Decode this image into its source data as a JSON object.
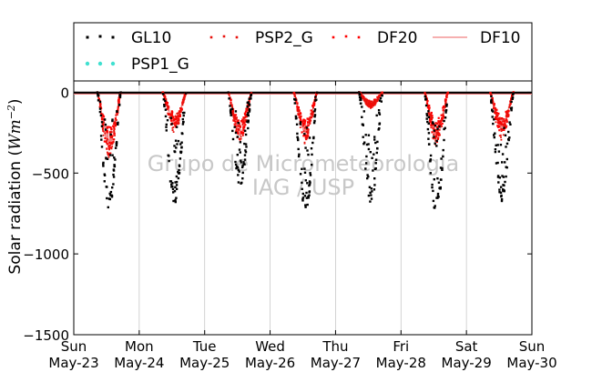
{
  "chart_data": {
    "type": "scatter",
    "title": "",
    "xlabel": "",
    "ylabel": "Solar radiation (Wm⁻²)",
    "ylabel_parts": {
      "main": "Solar radiation (",
      "unit": "Wm",
      "exp": "−2",
      "close": ")"
    },
    "xlim": [
      "2021-05-23",
      "2021-05-30"
    ],
    "ylim": [
      -1500,
      70
    ],
    "yticks": [
      0,
      -500,
      -1000,
      -1500
    ],
    "ytick_labels": [
      "0",
      "−500",
      "−1000",
      "−1500"
    ],
    "xtick_labels": [
      {
        "day": "Sun",
        "date": "May-23"
      },
      {
        "day": "Mon",
        "date": "May-24"
      },
      {
        "day": "Tue",
        "date": "May-25"
      },
      {
        "day": "Wed",
        "date": "May-26"
      },
      {
        "day": "Thu",
        "date": "May-27"
      },
      {
        "day": "Fri",
        "date": "May-28"
      },
      {
        "day": "Sat",
        "date": "May-29"
      },
      {
        "day": "Sun",
        "date": "May-30"
      }
    ],
    "grid": "vertical",
    "legend_placement": "top",
    "watermark": [
      "Grupo de Micrometeorologia",
      "IAG / USP"
    ],
    "day_peaks": [
      {
        "date": "2021-05-23",
        "GL10": -720,
        "PSP2_G": -410,
        "DF20": -390,
        "DF10": -330
      },
      {
        "date": "2021-05-24",
        "GL10": -690,
        "PSP2_G": -250,
        "DF20": -230,
        "DF10": -200
      },
      {
        "date": "2021-05-25",
        "GL10": -580,
        "PSP2_G": -320,
        "DF20": -310,
        "DF10": -270
      },
      {
        "date": "2021-05-26",
        "GL10": -760,
        "PSP2_G": -320,
        "DF20": -300,
        "DF10": -250
      },
      {
        "date": "2021-05-27",
        "GL10": -690,
        "PSP2_G": -100,
        "DF20": -95,
        "DF10": -85
      },
      {
        "date": "2021-05-28",
        "GL10": -760,
        "PSP2_G": -330,
        "DF20": -310,
        "DF10": -280
      },
      {
        "date": "2021-05-29",
        "GL10": -680,
        "PSP2_G": -300,
        "DF20": -270,
        "DF10": -230
      }
    ],
    "series": [
      {
        "name": "GL10",
        "color": "#000000",
        "style": "dots"
      },
      {
        "name": "PSP2_G",
        "color": "#e8120c",
        "style": "dots"
      },
      {
        "name": "DF20",
        "color": "#ff0000",
        "style": "dots"
      },
      {
        "name": "DF10",
        "color": "#f08080",
        "style": "line"
      },
      {
        "name": "PSP1_G",
        "color": "#40e0d0",
        "style": "dots"
      }
    ]
  }
}
